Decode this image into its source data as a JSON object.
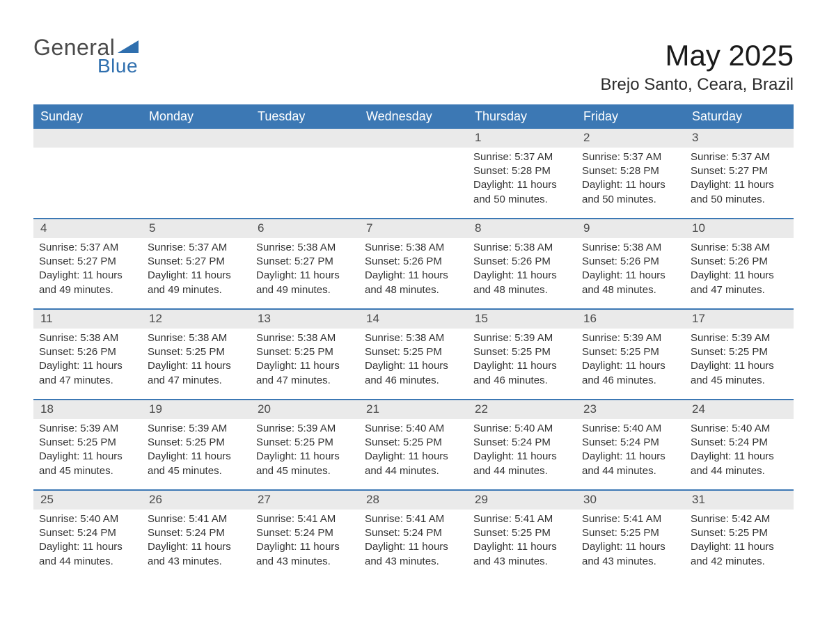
{
  "logo": {
    "word1": "General",
    "word2": "Blue"
  },
  "title": "May 2025",
  "location": "Brejo Santo, Ceara, Brazil",
  "colors": {
    "header_bg": "#3c78b4",
    "header_text": "#ffffff",
    "daynum_bg": "#eaeaea",
    "week_border": "#3c78b4",
    "body_text": "#333333",
    "logo_blue": "#2f6fae",
    "logo_gray": "#4a4a4a",
    "background": "#ffffff"
  },
  "typography": {
    "title_fontsize": 42,
    "location_fontsize": 24,
    "dow_fontsize": 18,
    "daynum_fontsize": 17,
    "body_fontsize": 15
  },
  "day_names": [
    "Sunday",
    "Monday",
    "Tuesday",
    "Wednesday",
    "Thursday",
    "Friday",
    "Saturday"
  ],
  "weeks": [
    [
      {
        "empty": true
      },
      {
        "empty": true
      },
      {
        "empty": true
      },
      {
        "empty": true
      },
      {
        "n": "1",
        "sunrise": "Sunrise: 5:37 AM",
        "sunset": "Sunset: 5:28 PM",
        "dl1": "Daylight: 11 hours",
        "dl2": "and 50 minutes."
      },
      {
        "n": "2",
        "sunrise": "Sunrise: 5:37 AM",
        "sunset": "Sunset: 5:28 PM",
        "dl1": "Daylight: 11 hours",
        "dl2": "and 50 minutes."
      },
      {
        "n": "3",
        "sunrise": "Sunrise: 5:37 AM",
        "sunset": "Sunset: 5:27 PM",
        "dl1": "Daylight: 11 hours",
        "dl2": "and 50 minutes."
      }
    ],
    [
      {
        "n": "4",
        "sunrise": "Sunrise: 5:37 AM",
        "sunset": "Sunset: 5:27 PM",
        "dl1": "Daylight: 11 hours",
        "dl2": "and 49 minutes."
      },
      {
        "n": "5",
        "sunrise": "Sunrise: 5:37 AM",
        "sunset": "Sunset: 5:27 PM",
        "dl1": "Daylight: 11 hours",
        "dl2": "and 49 minutes."
      },
      {
        "n": "6",
        "sunrise": "Sunrise: 5:38 AM",
        "sunset": "Sunset: 5:27 PM",
        "dl1": "Daylight: 11 hours",
        "dl2": "and 49 minutes."
      },
      {
        "n": "7",
        "sunrise": "Sunrise: 5:38 AM",
        "sunset": "Sunset: 5:26 PM",
        "dl1": "Daylight: 11 hours",
        "dl2": "and 48 minutes."
      },
      {
        "n": "8",
        "sunrise": "Sunrise: 5:38 AM",
        "sunset": "Sunset: 5:26 PM",
        "dl1": "Daylight: 11 hours",
        "dl2": "and 48 minutes."
      },
      {
        "n": "9",
        "sunrise": "Sunrise: 5:38 AM",
        "sunset": "Sunset: 5:26 PM",
        "dl1": "Daylight: 11 hours",
        "dl2": "and 48 minutes."
      },
      {
        "n": "10",
        "sunrise": "Sunrise: 5:38 AM",
        "sunset": "Sunset: 5:26 PM",
        "dl1": "Daylight: 11 hours",
        "dl2": "and 47 minutes."
      }
    ],
    [
      {
        "n": "11",
        "sunrise": "Sunrise: 5:38 AM",
        "sunset": "Sunset: 5:26 PM",
        "dl1": "Daylight: 11 hours",
        "dl2": "and 47 minutes."
      },
      {
        "n": "12",
        "sunrise": "Sunrise: 5:38 AM",
        "sunset": "Sunset: 5:25 PM",
        "dl1": "Daylight: 11 hours",
        "dl2": "and 47 minutes."
      },
      {
        "n": "13",
        "sunrise": "Sunrise: 5:38 AM",
        "sunset": "Sunset: 5:25 PM",
        "dl1": "Daylight: 11 hours",
        "dl2": "and 47 minutes."
      },
      {
        "n": "14",
        "sunrise": "Sunrise: 5:38 AM",
        "sunset": "Sunset: 5:25 PM",
        "dl1": "Daylight: 11 hours",
        "dl2": "and 46 minutes."
      },
      {
        "n": "15",
        "sunrise": "Sunrise: 5:39 AM",
        "sunset": "Sunset: 5:25 PM",
        "dl1": "Daylight: 11 hours",
        "dl2": "and 46 minutes."
      },
      {
        "n": "16",
        "sunrise": "Sunrise: 5:39 AM",
        "sunset": "Sunset: 5:25 PM",
        "dl1": "Daylight: 11 hours",
        "dl2": "and 46 minutes."
      },
      {
        "n": "17",
        "sunrise": "Sunrise: 5:39 AM",
        "sunset": "Sunset: 5:25 PM",
        "dl1": "Daylight: 11 hours",
        "dl2": "and 45 minutes."
      }
    ],
    [
      {
        "n": "18",
        "sunrise": "Sunrise: 5:39 AM",
        "sunset": "Sunset: 5:25 PM",
        "dl1": "Daylight: 11 hours",
        "dl2": "and 45 minutes."
      },
      {
        "n": "19",
        "sunrise": "Sunrise: 5:39 AM",
        "sunset": "Sunset: 5:25 PM",
        "dl1": "Daylight: 11 hours",
        "dl2": "and 45 minutes."
      },
      {
        "n": "20",
        "sunrise": "Sunrise: 5:39 AM",
        "sunset": "Sunset: 5:25 PM",
        "dl1": "Daylight: 11 hours",
        "dl2": "and 45 minutes."
      },
      {
        "n": "21",
        "sunrise": "Sunrise: 5:40 AM",
        "sunset": "Sunset: 5:25 PM",
        "dl1": "Daylight: 11 hours",
        "dl2": "and 44 minutes."
      },
      {
        "n": "22",
        "sunrise": "Sunrise: 5:40 AM",
        "sunset": "Sunset: 5:24 PM",
        "dl1": "Daylight: 11 hours",
        "dl2": "and 44 minutes."
      },
      {
        "n": "23",
        "sunrise": "Sunrise: 5:40 AM",
        "sunset": "Sunset: 5:24 PM",
        "dl1": "Daylight: 11 hours",
        "dl2": "and 44 minutes."
      },
      {
        "n": "24",
        "sunrise": "Sunrise: 5:40 AM",
        "sunset": "Sunset: 5:24 PM",
        "dl1": "Daylight: 11 hours",
        "dl2": "and 44 minutes."
      }
    ],
    [
      {
        "n": "25",
        "sunrise": "Sunrise: 5:40 AM",
        "sunset": "Sunset: 5:24 PM",
        "dl1": "Daylight: 11 hours",
        "dl2": "and 44 minutes."
      },
      {
        "n": "26",
        "sunrise": "Sunrise: 5:41 AM",
        "sunset": "Sunset: 5:24 PM",
        "dl1": "Daylight: 11 hours",
        "dl2": "and 43 minutes."
      },
      {
        "n": "27",
        "sunrise": "Sunrise: 5:41 AM",
        "sunset": "Sunset: 5:24 PM",
        "dl1": "Daylight: 11 hours",
        "dl2": "and 43 minutes."
      },
      {
        "n": "28",
        "sunrise": "Sunrise: 5:41 AM",
        "sunset": "Sunset: 5:24 PM",
        "dl1": "Daylight: 11 hours",
        "dl2": "and 43 minutes."
      },
      {
        "n": "29",
        "sunrise": "Sunrise: 5:41 AM",
        "sunset": "Sunset: 5:25 PM",
        "dl1": "Daylight: 11 hours",
        "dl2": "and 43 minutes."
      },
      {
        "n": "30",
        "sunrise": "Sunrise: 5:41 AM",
        "sunset": "Sunset: 5:25 PM",
        "dl1": "Daylight: 11 hours",
        "dl2": "and 43 minutes."
      },
      {
        "n": "31",
        "sunrise": "Sunrise: 5:42 AM",
        "sunset": "Sunset: 5:25 PM",
        "dl1": "Daylight: 11 hours",
        "dl2": "and 42 minutes."
      }
    ]
  ]
}
